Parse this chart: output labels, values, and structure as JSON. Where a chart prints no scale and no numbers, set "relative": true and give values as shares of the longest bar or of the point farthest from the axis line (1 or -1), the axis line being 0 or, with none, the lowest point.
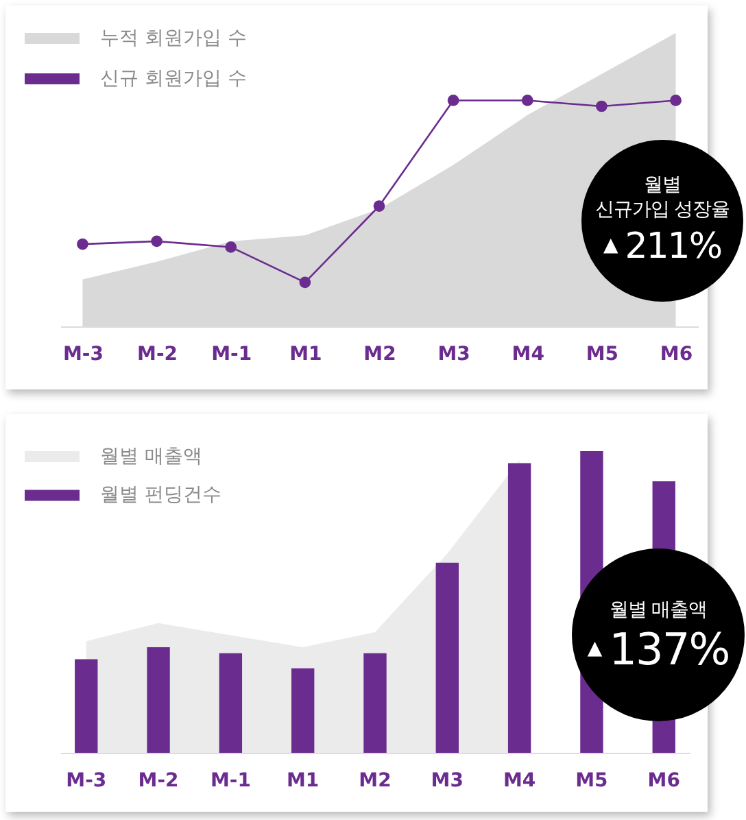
{
  "chart_data": [
    {
      "type": "line",
      "relative": true,
      "categories": [
        "M-3",
        "M-2",
        "M-1",
        "M1",
        "M2",
        "M3",
        "M4",
        "M5",
        "M6"
      ],
      "series": [
        {
          "name": "누적 회원가입 수",
          "type": "area",
          "color": "#d9d9d9",
          "values": [
            0.16,
            0.22,
            0.29,
            0.31,
            0.4,
            0.55,
            0.72,
            0.86,
            1
          ]
        },
        {
          "name": "신규 회원가입 수",
          "type": "line",
          "color": "#6b2c8f",
          "marker": "circle",
          "values": [
            0.28,
            0.29,
            0.27,
            0.15,
            0.41,
            0.77,
            0.77,
            0.75,
            0.77
          ]
        }
      ],
      "line_style": "solid",
      "legend": "top left",
      "annotations": [
        "월별\n신규가입 성장율",
        "▲ 211%"
      ]
    },
    {
      "type": "bar",
      "relative": true,
      "categories": [
        "M-3",
        "M-2",
        "M-1",
        "M1",
        "M2",
        "M3",
        "M4",
        "M5",
        "M6"
      ],
      "series": [
        {
          "name": "월별 매출액",
          "type": "area",
          "color": "#ebebeb",
          "values": [
            0.37,
            0.43,
            0.39,
            0.35,
            0.4,
            0.66,
            0.97,
            null,
            null
          ]
        },
        {
          "name": "월별 펀딩건수",
          "type": "bar",
          "color": "#6b2c8f",
          "values": [
            0.31,
            0.35,
            0.33,
            0.28,
            0.33,
            0.63,
            0.96,
            1,
            0.9
          ]
        }
      ],
      "legend": "top left",
      "annotations": [
        "월별 매출액",
        "▲ 137%"
      ]
    }
  ]
}
